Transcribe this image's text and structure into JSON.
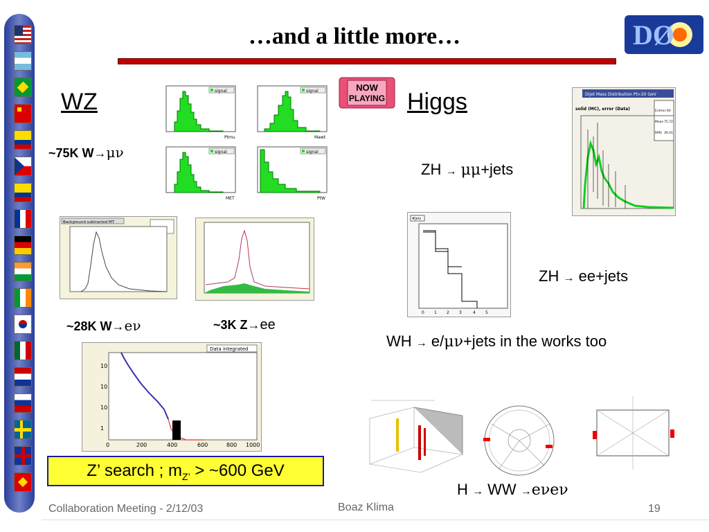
{
  "title": "…and a little more…",
  "wz": {
    "header": "WZ",
    "munu_label": "~75K W",
    "munu_decay": "μν",
    "enu_label": "~28K W",
    "enu_decay": "eν",
    "zee_label": "~3K Z",
    "zee_decay": "ee",
    "plot_legend": "signal",
    "xlabels": [
      "Ptmu",
      "Mawt",
      "MET",
      "PtW"
    ],
    "bg_plot_title": "Background subtracted MT",
    "data_plot_title": "Data integrated",
    "zprime": {
      "prefix": "Z’ search ; m",
      "sub": "Z’",
      "suffix": " > ~600 GeV"
    }
  },
  "higgs": {
    "header": "Higgs",
    "badge_line1": "NOW",
    "badge_line2": "PLAYING",
    "zhmm": {
      "prefix": "ZH",
      "decay": "μμ",
      "suffix": "+jets"
    },
    "zhee": {
      "prefix": "ZH",
      "decay": "ee+jets"
    },
    "wh": {
      "prefix": "WH",
      "decay": "e/",
      "mu": "μν",
      "suffix": "+jets in the works too"
    },
    "hww": {
      "prefix": "H",
      "mid": "WW",
      "decay": "eνeν"
    },
    "dijet_title": "Dijet Mass Distribution Pt>20 GeV",
    "dijet_legend": "solid (MC), error (Data)",
    "dijet_stats": {
      "entries_label": "Entries",
      "entries": "60",
      "mean_label": "Mean",
      "mean": "75.72",
      "rms_label": "RMS",
      "rms": "39.41"
    },
    "njets_title": "#Jets"
  },
  "footer": {
    "meeting": "Collaboration Meeting - 2/12/03",
    "author": "Boaz Klima",
    "page": "19"
  },
  "logo_text": "DØ"
}
